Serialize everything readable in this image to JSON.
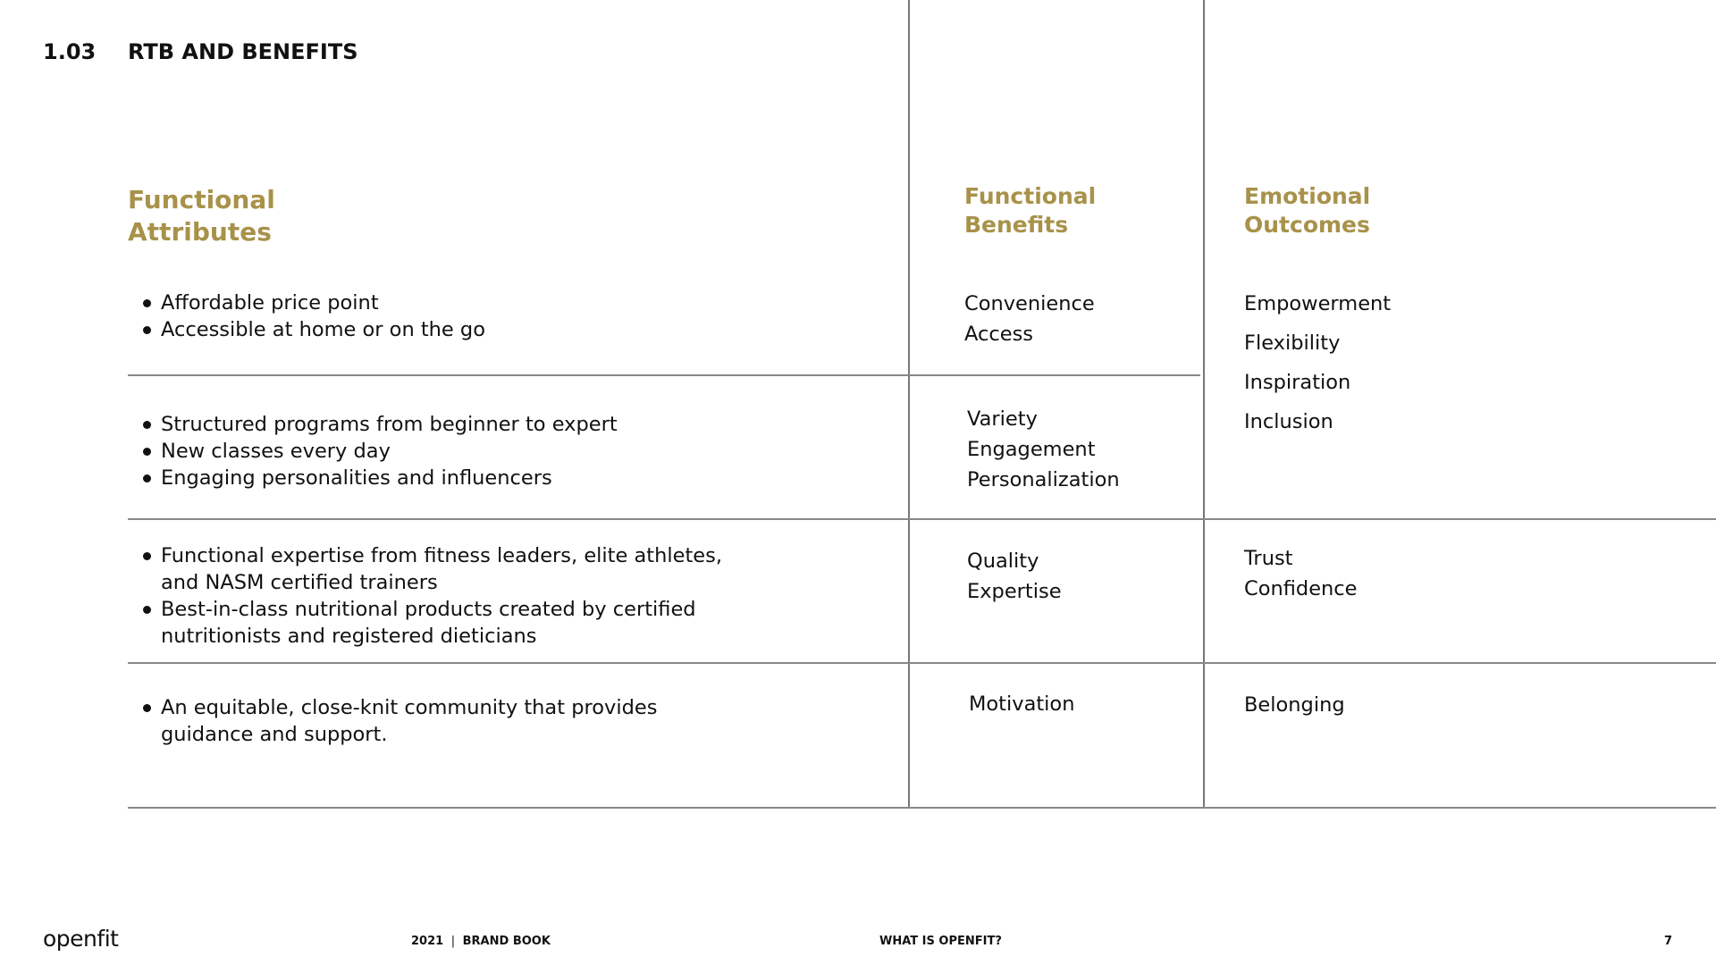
{
  "header": {
    "section_number": "1.03",
    "section_title": "RTB AND BENEFITS"
  },
  "columns": {
    "attributes": [
      "Functional",
      "Attributes"
    ],
    "benefits": [
      "Functional",
      "Benefits"
    ],
    "outcomes": [
      "Emotional",
      "Outcomes"
    ]
  },
  "rows": [
    {
      "attributes": [
        [
          "Affordable price point"
        ],
        [
          "Accessible at home or on the go"
        ]
      ],
      "benefits": [
        "Convenience",
        "Access"
      ]
    },
    {
      "attributes": [
        [
          "Structured programs from beginner to expert"
        ],
        [
          "New classes every day"
        ],
        [
          "Engaging personalities and influencers"
        ]
      ],
      "benefits": [
        "Variety",
        "Engagement",
        "Personalization"
      ]
    },
    {
      "attributes": [
        [
          "Functional expertise from fitness leaders, elite athletes,",
          "and NASM certified trainers"
        ],
        [
          "Best-in-class nutritional products created by certified",
          "nutritionists and registered dieticians"
        ]
      ],
      "benefits": [
        "Quality",
        "Expertise"
      ],
      "outcomes": [
        "Trust",
        "Confidence"
      ]
    },
    {
      "attributes": [
        [
          "An equitable, close-knit community that provides",
          "guidance and support."
        ]
      ],
      "benefits": [
        "Motivation"
      ],
      "outcomes": [
        "Belonging"
      ]
    }
  ],
  "outcomes_top": [
    "Empowerment",
    "Flexibility",
    "Inspiration",
    "Inclusion"
  ],
  "footer": {
    "logo": "openfit",
    "year": "2021",
    "book": "BRAND BOOK",
    "section": "WHAT IS OPENFIT?",
    "page": "7"
  },
  "colors": {
    "accent": "#a8924a",
    "rule": "#888888"
  }
}
